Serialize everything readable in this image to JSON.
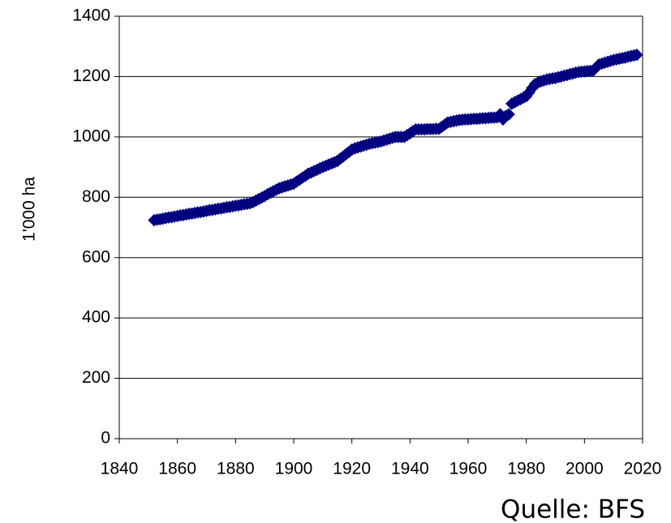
{
  "chart_data": {
    "type": "scatter",
    "y_label": "1'000 ha",
    "source": "Quelle: BFS",
    "color": "#000080",
    "grid": true,
    "xlim": [
      1840,
      2020
    ],
    "xticks": [
      1840,
      1860,
      1880,
      1900,
      1920,
      1940,
      1960,
      1980,
      2000,
      2020
    ],
    "ylim": [
      0,
      1400
    ],
    "yticks": [
      0,
      200,
      400,
      600,
      800,
      1000,
      1200,
      1400
    ],
    "x": [
      1852,
      1853,
      1854,
      1855,
      1856,
      1857,
      1858,
      1859,
      1860,
      1861,
      1862,
      1863,
      1864,
      1865,
      1866,
      1867,
      1868,
      1869,
      1870,
      1871,
      1872,
      1873,
      1874,
      1875,
      1876,
      1877,
      1878,
      1879,
      1880,
      1881,
      1882,
      1883,
      1884,
      1885,
      1886,
      1887,
      1888,
      1889,
      1890,
      1891,
      1892,
      1893,
      1894,
      1895,
      1896,
      1897,
      1898,
      1899,
      1900,
      1901,
      1902,
      1903,
      1904,
      1905,
      1906,
      1907,
      1908,
      1909,
      1910,
      1911,
      1912,
      1913,
      1914,
      1915,
      1916,
      1917,
      1918,
      1919,
      1920,
      1921,
      1922,
      1923,
      1924,
      1925,
      1926,
      1927,
      1928,
      1929,
      1930,
      1931,
      1932,
      1933,
      1934,
      1935,
      1936,
      1937,
      1938,
      1939,
      1940,
      1941,
      1942,
      1943,
      1944,
      1945,
      1946,
      1947,
      1948,
      1949,
      1950,
      1951,
      1952,
      1953,
      1954,
      1955,
      1956,
      1957,
      1958,
      1959,
      1960,
      1961,
      1962,
      1963,
      1964,
      1965,
      1966,
      1967,
      1968,
      1969,
      1970,
      1971,
      1972,
      1973,
      1974,
      1975,
      1976,
      1977,
      1978,
      1979,
      1980,
      1981,
      1982,
      1983,
      1984,
      1985,
      1986,
      1987,
      1988,
      1989,
      1990,
      1991,
      1992,
      1993,
      1994,
      1995,
      1996,
      1997,
      1998,
      1999,
      2000,
      2001,
      2002,
      2003,
      2004,
      2005,
      2006,
      2007,
      2008,
      2009,
      2010,
      2011,
      2012,
      2013,
      2014,
      2015,
      2016,
      2017,
      2018
    ],
    "values": [
      724,
      726,
      727,
      729,
      731,
      733,
      734,
      736,
      738,
      740,
      741,
      743,
      745,
      746,
      748,
      750,
      751,
      753,
      755,
      757,
      758,
      760,
      762,
      763,
      765,
      767,
      768,
      770,
      772,
      773,
      775,
      777,
      778,
      780,
      784,
      789,
      794,
      799,
      804,
      810,
      815,
      820,
      825,
      830,
      833,
      836,
      839,
      842,
      845,
      852,
      858,
      865,
      871,
      878,
      882,
      887,
      891,
      896,
      900,
      904,
      908,
      912,
      916,
      920,
      928,
      935,
      943,
      950,
      958,
      962,
      965,
      968,
      971,
      974,
      977,
      979,
      981,
      983,
      985,
      988,
      991,
      994,
      997,
      1000,
      1000,
      1000,
      1000,
      1006,
      1012,
      1019,
      1025,
      1025,
      1025,
      1025,
      1026,
      1026,
      1026,
      1027,
      1027,
      1034,
      1041,
      1048,
      1050,
      1052,
      1054,
      1056,
      1057,
      1058,
      1058,
      1059,
      1060,
      1060,
      1061,
      1062,
      1062,
      1063,
      1064,
      1064,
      1065,
      1075,
      1058,
      1070,
      1075,
      1110,
      1115,
      1120,
      1125,
      1130,
      1135,
      1148,
      1162,
      1175,
      1180,
      1184,
      1187,
      1190,
      1192,
      1194,
      1195,
      1198,
      1200,
      1203,
      1205,
      1208,
      1210,
      1213,
      1215,
      1216,
      1217,
      1218,
      1219,
      1220,
      1230,
      1240,
      1243,
      1246,
      1249,
      1252,
      1255,
      1257,
      1259,
      1261,
      1263,
      1266,
      1268,
      1270,
      1272
    ]
  }
}
